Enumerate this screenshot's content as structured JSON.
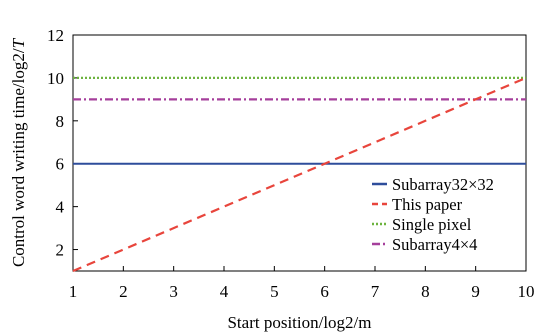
{
  "chart_data": {
    "type": "line",
    "title": "",
    "xlabel": "Start position/log2/m",
    "ylabel": "Control word writing time/log2/",
    "ylabel_italic": "T",
    "xlim": [
      1,
      10
    ],
    "ylim": [
      1,
      12
    ],
    "xticks": [
      1,
      2,
      3,
      4,
      5,
      6,
      7,
      8,
      9,
      10
    ],
    "yticks": [
      2,
      4,
      6,
      8,
      10,
      12
    ],
    "grid": false,
    "legend_position": "bottom-right",
    "series": [
      {
        "name": "Subarray32×32",
        "color": "#2e4d9b",
        "dash": "solid",
        "x": [
          1,
          10
        ],
        "y": [
          6,
          6
        ]
      },
      {
        "name": "This paper",
        "color": "#e8453c",
        "dash": "dashed",
        "x": [
          1,
          10
        ],
        "y": [
          1,
          10
        ]
      },
      {
        "name": "Single pixel",
        "color": "#6db33f",
        "dash": "dotted",
        "x": [
          1,
          10
        ],
        "y": [
          10,
          10
        ]
      },
      {
        "name": "Subarray4×4",
        "color": "#a53f9b",
        "dash": "dashdot",
        "x": [
          1,
          10
        ],
        "y": [
          9,
          9
        ]
      }
    ]
  }
}
